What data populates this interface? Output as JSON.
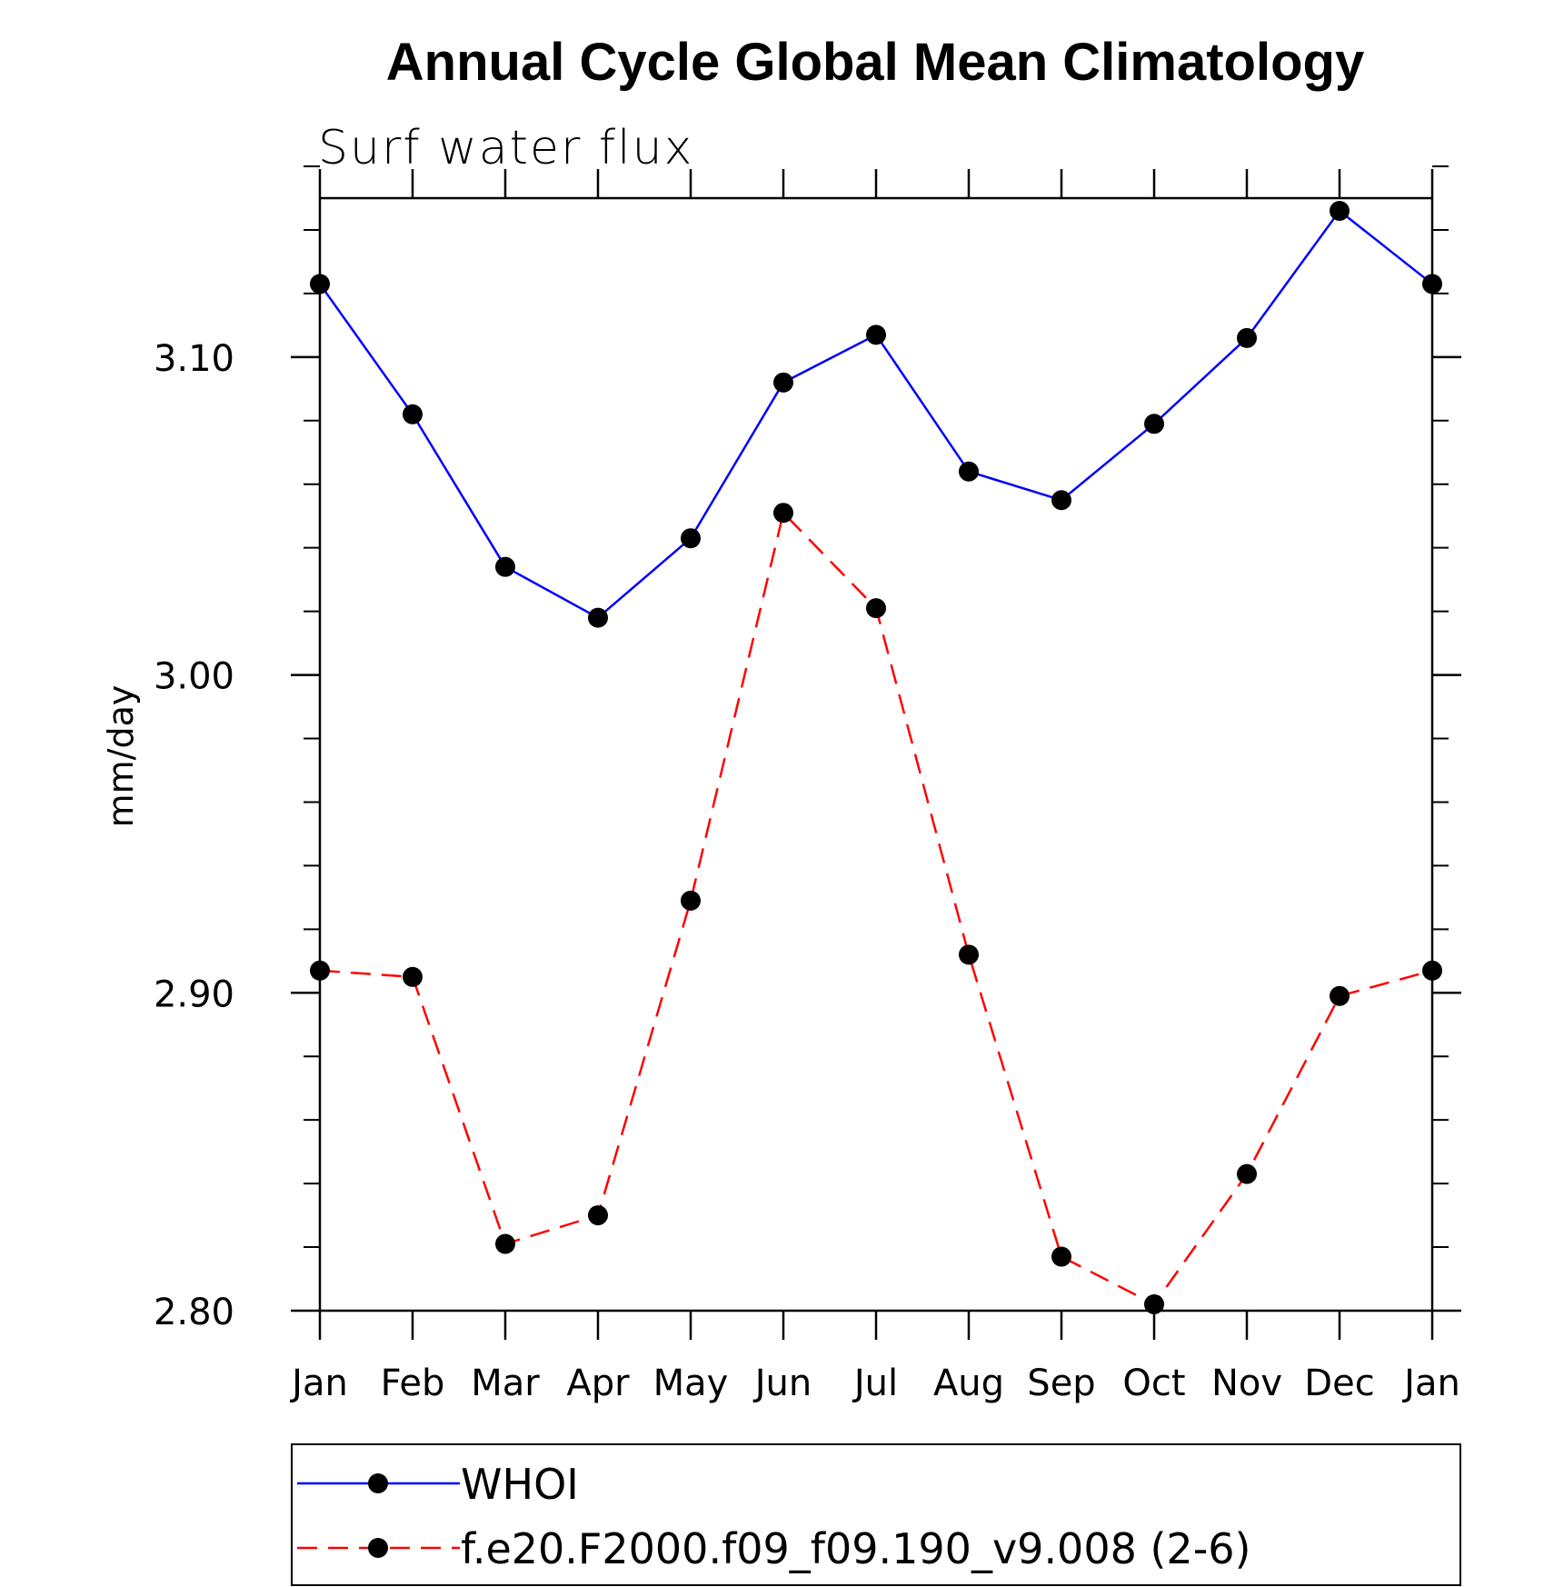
{
  "chart_data": {
    "type": "line",
    "title": "Annual Cycle Global Mean Climatology",
    "subtitle": "Surf water flux",
    "xlabel": "",
    "ylabel": "mm/day",
    "categories": [
      "Jan",
      "Feb",
      "Mar",
      "Apr",
      "May",
      "Jun",
      "Jul",
      "Aug",
      "Sep",
      "Oct",
      "Nov",
      "Dec",
      "Jan"
    ],
    "ylim": [
      2.8,
      3.15
    ],
    "yticks": [
      2.8,
      2.9,
      3.0,
      3.1
    ],
    "ytick_labels": [
      "2.80",
      "2.90",
      "3.00",
      "3.10"
    ],
    "y_minor_step": 0.02,
    "grid": false,
    "legend_position": "bottom",
    "series": [
      {
        "name": "WHOI",
        "color": "#0000ff",
        "line_style": "solid",
        "marker": "filled-circle",
        "values": [
          3.123,
          3.082,
          3.034,
          3.018,
          3.043,
          3.092,
          3.107,
          3.064,
          3.055,
          3.079,
          3.106,
          3.146,
          3.123
        ]
      },
      {
        "name": "f.e20.F2000.f09_f09.190_v9.008 (2-6)",
        "color": "#ff0000",
        "line_style": "dashed",
        "marker": "filled-circle",
        "values": [
          2.907,
          2.905,
          2.821,
          2.83,
          2.929,
          3.051,
          3.021,
          2.912,
          2.817,
          2.802,
          2.843,
          2.899,
          2.907
        ]
      }
    ]
  }
}
